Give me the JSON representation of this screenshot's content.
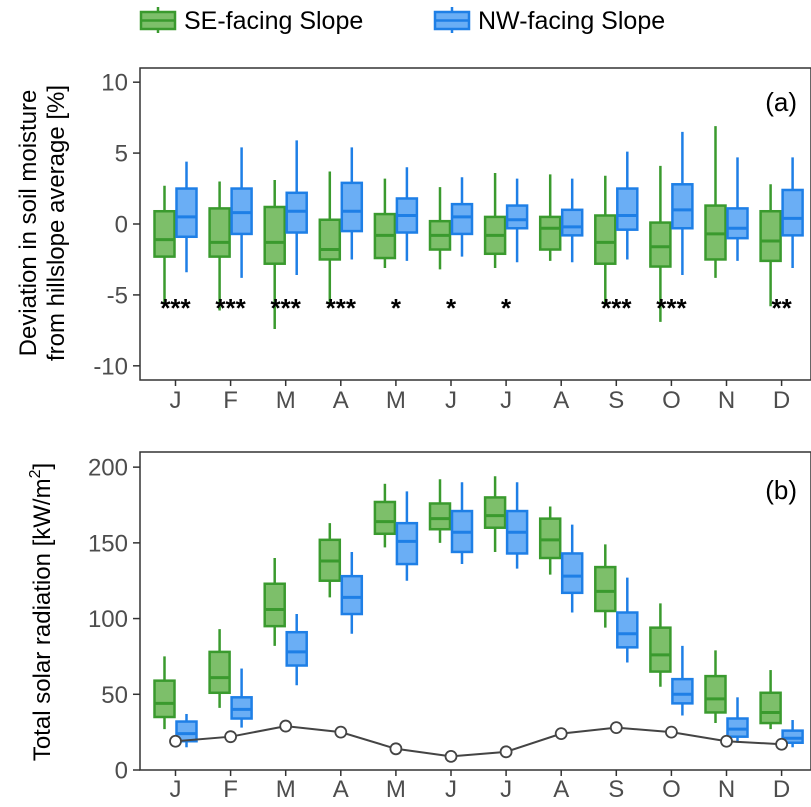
{
  "legend": [
    {
      "label": "SE-facing Slope",
      "fill": "#7dbf6a",
      "stroke": "#3a9a2e"
    },
    {
      "label": "NW-facing Slope",
      "fill": "#6aaef5",
      "stroke": "#1e7fe6"
    }
  ],
  "colors": {
    "se_fill": "#7dbf6a",
    "se_stroke": "#3a9a2e",
    "nw_fill": "#6aaef5",
    "nw_stroke": "#1e7fe6",
    "line": "#444444",
    "frame": "#333333"
  },
  "chart_data": [
    {
      "type": "box",
      "panel_label": "(a)",
      "ylabel_line1": "Deviation in soil moisture",
      "ylabel_line2": "from hillslope average [%]",
      "ylim": [
        -11,
        11
      ],
      "yticks": [
        10,
        5,
        0,
        -5,
        -10
      ],
      "categories": [
        "J",
        "F",
        "M",
        "A",
        "M",
        "J",
        "J",
        "A",
        "S",
        "O",
        "N",
        "D"
      ],
      "series": [
        {
          "name": "SE-facing Slope",
          "boxes": [
            {
              "wlo": -5.7,
              "q1": -2.3,
              "med": -1.1,
              "q3": 0.9,
              "whi": 2.7
            },
            {
              "wlo": -6.1,
              "q1": -2.3,
              "med": -1.3,
              "q3": 1.1,
              "whi": 3.0
            },
            {
              "wlo": -7.4,
              "q1": -2.8,
              "med": -1.3,
              "q3": 1.2,
              "whi": 3.1
            },
            {
              "wlo": -5.8,
              "q1": -2.5,
              "med": -1.8,
              "q3": 0.3,
              "whi": 3.7
            },
            {
              "wlo": -3.1,
              "q1": -2.4,
              "med": -0.8,
              "q3": 0.7,
              "whi": 3.2
            },
            {
              "wlo": -3.2,
              "q1": -1.8,
              "med": -0.8,
              "q3": 0.2,
              "whi": 2.6
            },
            {
              "wlo": -3.1,
              "q1": -2.1,
              "med": -0.8,
              "q3": 0.5,
              "whi": 3.6
            },
            {
              "wlo": -2.6,
              "q1": -1.8,
              "med": -0.3,
              "q3": 0.5,
              "whi": 3.5
            },
            {
              "wlo": -5.7,
              "q1": -2.8,
              "med": -1.3,
              "q3": 0.6,
              "whi": 3.4
            },
            {
              "wlo": -6.9,
              "q1": -3.0,
              "med": -1.6,
              "q3": 0.1,
              "whi": 4.1
            },
            {
              "wlo": -3.8,
              "q1": -2.5,
              "med": -0.7,
              "q3": 1.3,
              "whi": 6.9
            },
            {
              "wlo": -5.8,
              "q1": -2.6,
              "med": -1.2,
              "q3": 0.9,
              "whi": 2.8
            }
          ]
        },
        {
          "name": "NW-facing Slope",
          "boxes": [
            {
              "wlo": -3.4,
              "q1": -0.9,
              "med": 0.5,
              "q3": 2.5,
              "whi": 4.4
            },
            {
              "wlo": -3.8,
              "q1": -0.7,
              "med": 0.8,
              "q3": 2.5,
              "whi": 5.4
            },
            {
              "wlo": -3.6,
              "q1": -0.6,
              "med": 0.9,
              "q3": 2.2,
              "whi": 5.9
            },
            {
              "wlo": -2.5,
              "q1": -0.5,
              "med": 0.9,
              "q3": 2.9,
              "whi": 5.4
            },
            {
              "wlo": -2.6,
              "q1": -0.6,
              "med": 0.6,
              "q3": 1.8,
              "whi": 4.0
            },
            {
              "wlo": -2.3,
              "q1": -0.7,
              "med": 0.5,
              "q3": 1.4,
              "whi": 3.3
            },
            {
              "wlo": -2.7,
              "q1": -0.3,
              "med": 0.3,
              "q3": 1.3,
              "whi": 3.2
            },
            {
              "wlo": -2.7,
              "q1": -0.8,
              "med": -0.2,
              "q3": 1.0,
              "whi": 3.2
            },
            {
              "wlo": -2.5,
              "q1": -0.4,
              "med": 0.6,
              "q3": 2.5,
              "whi": 5.1
            },
            {
              "wlo": -3.6,
              "q1": -0.3,
              "med": 1.0,
              "q3": 2.8,
              "whi": 6.5
            },
            {
              "wlo": -2.6,
              "q1": -1.0,
              "med": -0.3,
              "q3": 1.1,
              "whi": 4.7
            },
            {
              "wlo": -3.1,
              "q1": -0.8,
              "med": 0.4,
              "q3": 2.4,
              "whi": 4.7
            }
          ]
        }
      ],
      "significance": [
        "***",
        "***",
        "***",
        "***",
        "*",
        "*",
        "*",
        "",
        "***",
        "***",
        "",
        "**"
      ]
    },
    {
      "type": "box",
      "panel_label": "(b)",
      "ylabel": "Total solar radiation [kW/m",
      "ylabel_sup": "2",
      "ylabel_end": "]",
      "ylim": [
        0,
        210
      ],
      "yticks": [
        200,
        150,
        100,
        50,
        0
      ],
      "categories": [
        "J",
        "F",
        "M",
        "A",
        "M",
        "J",
        "J",
        "A",
        "S",
        "O",
        "N",
        "D"
      ],
      "series": [
        {
          "name": "SE-facing Slope",
          "boxes": [
            {
              "wlo": 27,
              "q1": 35,
              "med": 44,
              "q3": 59,
              "whi": 75
            },
            {
              "wlo": 41,
              "q1": 51,
              "med": 61,
              "q3": 78,
              "whi": 93
            },
            {
              "wlo": 82,
              "q1": 95,
              "med": 106,
              "q3": 123,
              "whi": 140
            },
            {
              "wlo": 114,
              "q1": 125,
              "med": 138,
              "q3": 152,
              "whi": 163
            },
            {
              "wlo": 147,
              "q1": 156,
              "med": 164,
              "q3": 177,
              "whi": 189
            },
            {
              "wlo": 150,
              "q1": 159,
              "med": 166,
              "q3": 176,
              "whi": 192
            },
            {
              "wlo": 144,
              "q1": 160,
              "med": 168,
              "q3": 180,
              "whi": 194
            },
            {
              "wlo": 129,
              "q1": 140,
              "med": 152,
              "q3": 166,
              "whi": 174
            },
            {
              "wlo": 94,
              "q1": 105,
              "med": 118,
              "q3": 134,
              "whi": 149
            },
            {
              "wlo": 55,
              "q1": 65,
              "med": 76,
              "q3": 94,
              "whi": 110
            },
            {
              "wlo": 31,
              "q1": 38,
              "med": 47,
              "q3": 62,
              "whi": 79
            },
            {
              "wlo": 27,
              "q1": 31,
              "med": 38,
              "q3": 51,
              "whi": 66
            }
          ]
        },
        {
          "name": "NW-facing Slope",
          "boxes": [
            {
              "wlo": 15,
              "q1": 19,
              "med": 24,
              "q3": 32,
              "whi": 37
            },
            {
              "wlo": 28,
              "q1": 34,
              "med": 40,
              "q3": 48,
              "whi": 67
            },
            {
              "wlo": 56,
              "q1": 69,
              "med": 78,
              "q3": 91,
              "whi": 103
            },
            {
              "wlo": 90,
              "q1": 103,
              "med": 114,
              "q3": 128,
              "whi": 144
            },
            {
              "wlo": 125,
              "q1": 136,
              "med": 151,
              "q3": 163,
              "whi": 184
            },
            {
              "wlo": 136,
              "q1": 144,
              "med": 157,
              "q3": 171,
              "whi": 190
            },
            {
              "wlo": 133,
              "q1": 143,
              "med": 157,
              "q3": 171,
              "whi": 190
            },
            {
              "wlo": 104,
              "q1": 117,
              "med": 128,
              "q3": 143,
              "whi": 162
            },
            {
              "wlo": 71,
              "q1": 81,
              "med": 90,
              "q3": 104,
              "whi": 127
            },
            {
              "wlo": 36,
              "q1": 44,
              "med": 50,
              "q3": 60,
              "whi": 82
            },
            {
              "wlo": 18,
              "q1": 22,
              "med": 27,
              "q3": 34,
              "whi": 48
            },
            {
              "wlo": 15,
              "q1": 18,
              "med": 21,
              "q3": 26,
              "whi": 33
            }
          ]
        }
      ],
      "line": [
        19,
        22,
        29,
        25,
        14,
        9,
        12,
        24,
        28,
        25,
        19,
        17
      ]
    }
  ]
}
